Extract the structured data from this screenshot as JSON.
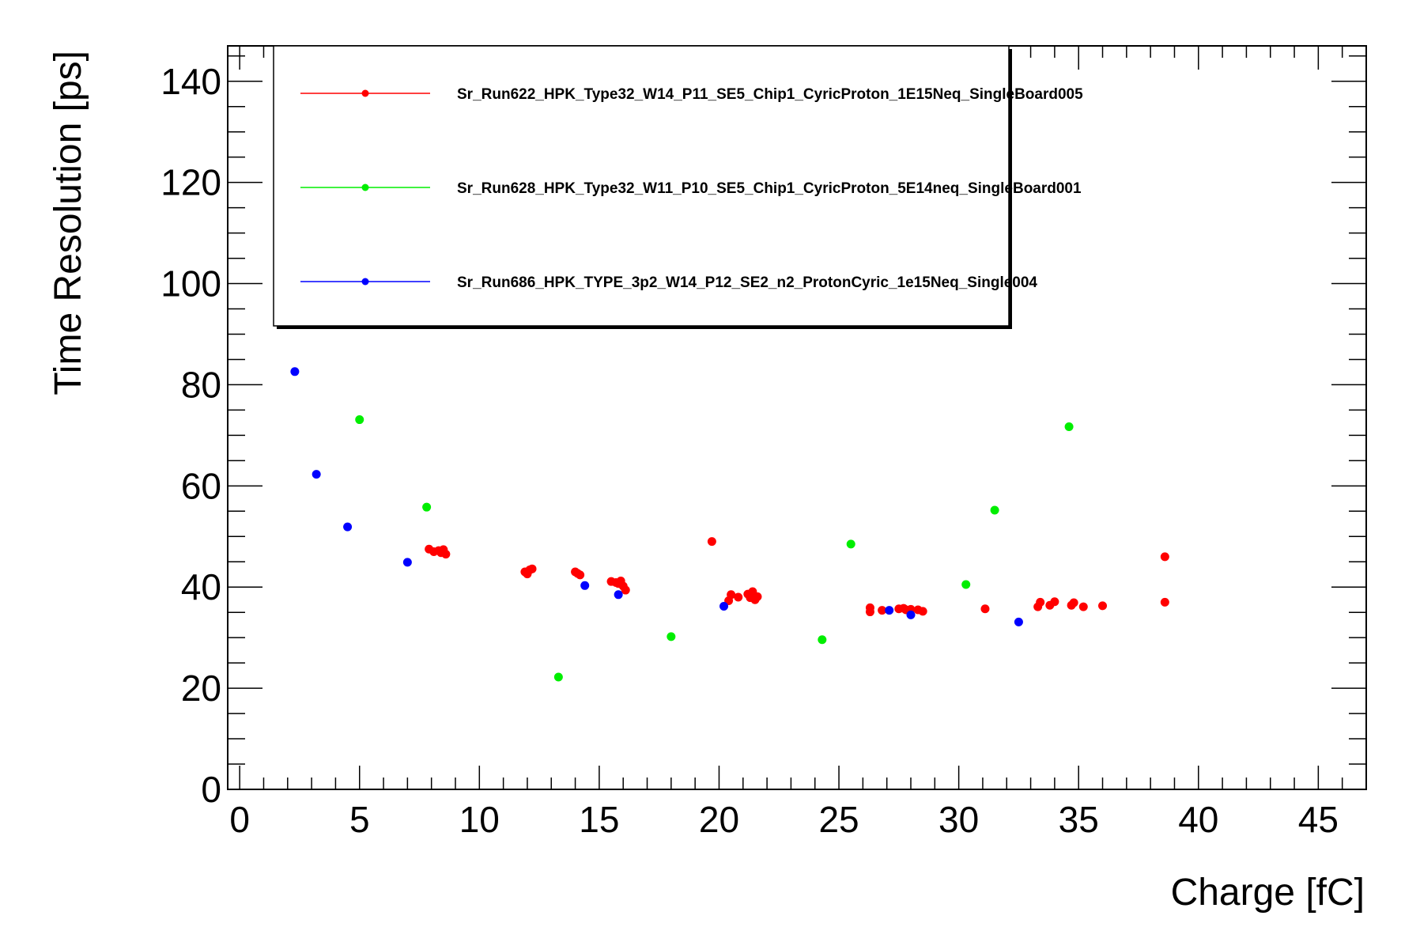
{
  "chart_data": {
    "type": "scatter",
    "title": "",
    "xlabel": "Charge [fC]",
    "ylabel": "Time Resolution [ps]",
    "xlim": [
      -0.5,
      47
    ],
    "ylim": [
      0,
      147
    ],
    "x_ticks": [
      0,
      5,
      10,
      15,
      20,
      25,
      30,
      35,
      40,
      45
    ],
    "y_ticks": [
      0,
      20,
      40,
      60,
      80,
      100,
      120,
      140
    ],
    "grid": false,
    "legend_position": "top-left",
    "series": [
      {
        "name": "Sr_Run622_HPK_Type32_W14_P11_SE5_Chip1_CyricProton_1E15Neq_SingleBoard005",
        "color": "#ff0000",
        "points": [
          [
            7.9,
            47.5
          ],
          [
            8.1,
            47.0
          ],
          [
            8.3,
            47.2
          ],
          [
            8.4,
            46.8
          ],
          [
            8.5,
            47.4
          ],
          [
            8.6,
            46.5
          ],
          [
            11.9,
            43.0
          ],
          [
            12.1,
            43.4
          ],
          [
            12.2,
            43.6
          ],
          [
            12.0,
            42.6
          ],
          [
            14.0,
            43.0
          ],
          [
            14.1,
            42.7
          ],
          [
            14.2,
            42.4
          ],
          [
            15.5,
            41.1
          ],
          [
            15.7,
            40.9
          ],
          [
            15.8,
            40.7
          ],
          [
            15.9,
            41.2
          ],
          [
            16.0,
            40.2
          ],
          [
            16.1,
            39.4
          ],
          [
            19.7,
            49.0
          ],
          [
            20.4,
            37.3
          ],
          [
            20.5,
            38.5
          ],
          [
            20.8,
            38.0
          ],
          [
            21.2,
            38.6
          ],
          [
            21.3,
            37.9
          ],
          [
            21.4,
            39.1
          ],
          [
            21.5,
            37.5
          ],
          [
            21.6,
            38.1
          ],
          [
            26.3,
            35.9
          ],
          [
            26.3,
            35.1
          ],
          [
            26.8,
            35.4
          ],
          [
            27.5,
            35.7
          ],
          [
            27.7,
            35.8
          ],
          [
            27.8,
            35.5
          ],
          [
            28.0,
            35.6
          ],
          [
            28.3,
            35.5
          ],
          [
            28.5,
            35.2
          ],
          [
            31.1,
            35.7
          ],
          [
            33.3,
            36.1
          ],
          [
            33.4,
            37.0
          ],
          [
            33.8,
            36.4
          ],
          [
            34.0,
            37.1
          ],
          [
            34.7,
            36.4
          ],
          [
            34.8,
            36.9
          ],
          [
            35.2,
            36.1
          ],
          [
            36.0,
            36.3
          ],
          [
            38.6,
            46.0
          ],
          [
            38.6,
            37.0
          ]
        ]
      },
      {
        "name": "Sr_Run628_HPK_Type32_W11_P10_SE5_Chip1_CyricProton_5E14neq_SingleBoard001",
        "color": "#00ee00",
        "points": [
          [
            5.0,
            73.1
          ],
          [
            7.8,
            55.8
          ],
          [
            13.3,
            22.2
          ],
          [
            18.0,
            30.2
          ],
          [
            24.3,
            29.6
          ],
          [
            25.5,
            48.5
          ],
          [
            30.3,
            40.5
          ],
          [
            31.5,
            55.2
          ],
          [
            34.6,
            71.7
          ]
        ]
      },
      {
        "name": "Sr_Run686_HPK_TYPE_3p2_W14_P12_SE2_n2_ProtonCyric_1e15Neq_Single004",
        "color": "#0000ff",
        "points": [
          [
            2.3,
            82.6
          ],
          [
            3.2,
            62.3
          ],
          [
            4.5,
            51.9
          ],
          [
            7.0,
            44.9
          ],
          [
            14.4,
            40.3
          ],
          [
            15.8,
            38.5
          ],
          [
            20.2,
            36.2
          ],
          [
            27.1,
            35.4
          ],
          [
            28.0,
            34.5
          ],
          [
            32.5,
            33.1
          ]
        ]
      }
    ]
  }
}
